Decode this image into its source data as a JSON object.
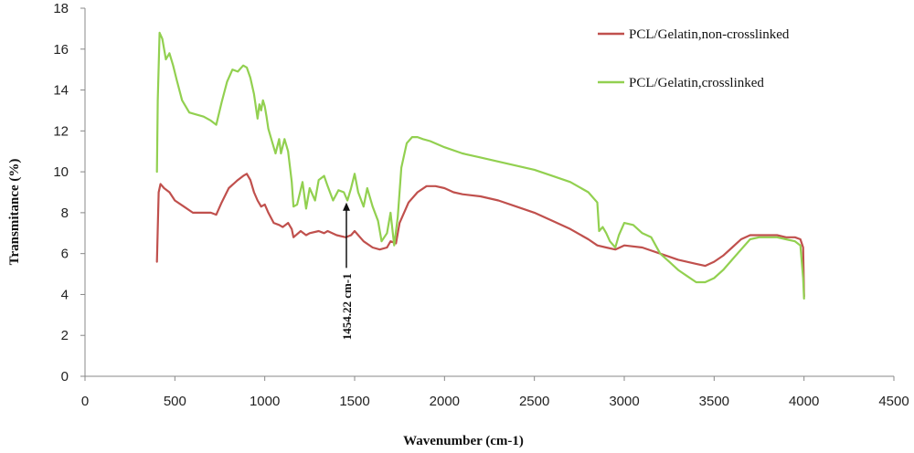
{
  "chart_data": {
    "type": "line",
    "title": "",
    "xlabel": "Wavenumber (cm-1)",
    "ylabel": "Transmitance (%)",
    "xlim": [
      0,
      4500
    ],
    "ylim": [
      0,
      18
    ],
    "xticks": [
      0,
      500,
      1000,
      1500,
      2000,
      2500,
      3000,
      3500,
      4000,
      4500
    ],
    "yticks": [
      0,
      2,
      4,
      6,
      8,
      10,
      12,
      14,
      16,
      18
    ],
    "grid": false,
    "legend_position": "top-right",
    "annotation": {
      "text": "1454.22 cm-1",
      "x": 1454.22,
      "y_arrow_tip": 8.5,
      "y_arrow_tail": 5.3
    },
    "series": [
      {
        "name": "PCL/Gelatin,non-crosslinked",
        "color": "#c0504d",
        "x": [
          400,
          410,
          420,
          440,
          470,
          500,
          550,
          600,
          650,
          700,
          730,
          760,
          800,
          850,
          880,
          900,
          920,
          940,
          960,
          980,
          1000,
          1020,
          1050,
          1080,
          1100,
          1130,
          1150,
          1160,
          1200,
          1230,
          1250,
          1300,
          1330,
          1350,
          1400,
          1450,
          1480,
          1500,
          1550,
          1600,
          1640,
          1680,
          1700,
          1730,
          1750,
          1800,
          1850,
          1900,
          1950,
          2000,
          2050,
          2100,
          2200,
          2300,
          2400,
          2500,
          2600,
          2700,
          2800,
          2850,
          2900,
          2950,
          3000,
          3100,
          3200,
          3300,
          3400,
          3450,
          3500,
          3550,
          3600,
          3650,
          3700,
          3750,
          3800,
          3850,
          3900,
          3950,
          3980,
          3995,
          4000
        ],
        "y": [
          5.6,
          9.0,
          9.4,
          9.2,
          9.0,
          8.6,
          8.3,
          8.0,
          8.0,
          8.0,
          7.9,
          8.5,
          9.2,
          9.6,
          9.8,
          9.9,
          9.6,
          9.0,
          8.6,
          8.3,
          8.4,
          8.0,
          7.5,
          7.4,
          7.3,
          7.5,
          7.2,
          6.8,
          7.1,
          6.9,
          7.0,
          7.1,
          7.0,
          7.1,
          6.9,
          6.8,
          6.9,
          7.1,
          6.6,
          6.3,
          6.2,
          6.3,
          6.6,
          6.5,
          7.5,
          8.5,
          9.0,
          9.3,
          9.3,
          9.2,
          9.0,
          8.9,
          8.8,
          8.6,
          8.3,
          8.0,
          7.6,
          7.2,
          6.7,
          6.4,
          6.3,
          6.2,
          6.4,
          6.3,
          6.0,
          5.7,
          5.5,
          5.4,
          5.6,
          5.9,
          6.3,
          6.7,
          6.9,
          6.9,
          6.9,
          6.9,
          6.8,
          6.8,
          6.7,
          6.3,
          3.9
        ]
      },
      {
        "name": "PCL/Gelatin,crosslinked",
        "color": "#92d050",
        "x": [
          400,
          405,
          415,
          430,
          450,
          470,
          490,
          510,
          540,
          580,
          620,
          660,
          700,
          730,
          760,
          790,
          820,
          850,
          880,
          900,
          920,
          940,
          960,
          970,
          980,
          990,
          1000,
          1010,
          1020,
          1040,
          1060,
          1080,
          1090,
          1110,
          1130,
          1150,
          1160,
          1180,
          1210,
          1230,
          1250,
          1280,
          1300,
          1330,
          1350,
          1380,
          1410,
          1440,
          1460,
          1480,
          1500,
          1520,
          1550,
          1570,
          1600,
          1630,
          1650,
          1680,
          1700,
          1720,
          1740,
          1760,
          1790,
          1820,
          1850,
          1880,
          1920,
          2000,
          2100,
          2200,
          2300,
          2400,
          2500,
          2600,
          2700,
          2800,
          2850,
          2860,
          2880,
          2900,
          2920,
          2950,
          2970,
          3000,
          3050,
          3100,
          3150,
          3200,
          3250,
          3300,
          3350,
          3400,
          3450,
          3500,
          3550,
          3600,
          3650,
          3700,
          3750,
          3800,
          3850,
          3900,
          3950,
          3980,
          3995,
          4000
        ],
        "y": [
          10.0,
          13.5,
          16.8,
          16.5,
          15.5,
          15.8,
          15.2,
          14.5,
          13.5,
          12.9,
          12.8,
          12.7,
          12.5,
          12.3,
          13.4,
          14.4,
          15.0,
          14.9,
          15.2,
          15.1,
          14.6,
          13.8,
          12.6,
          13.3,
          13.0,
          13.5,
          13.2,
          12.7,
          12.1,
          11.5,
          10.9,
          11.6,
          10.9,
          11.6,
          11.0,
          9.5,
          8.3,
          8.4,
          9.5,
          8.2,
          9.2,
          8.6,
          9.6,
          9.8,
          9.3,
          8.6,
          9.1,
          9.0,
          8.6,
          9.2,
          9.9,
          9.0,
          8.3,
          9.2,
          8.3,
          7.6,
          6.6,
          7.0,
          8.0,
          6.4,
          7.8,
          10.2,
          11.4,
          11.7,
          11.7,
          11.6,
          11.5,
          11.2,
          10.9,
          10.7,
          10.5,
          10.3,
          10.1,
          9.8,
          9.5,
          9.0,
          8.5,
          7.1,
          7.3,
          7.0,
          6.6,
          6.3,
          6.9,
          7.5,
          7.4,
          7.0,
          6.8,
          6.0,
          5.6,
          5.2,
          4.9,
          4.6,
          4.6,
          4.8,
          5.2,
          5.7,
          6.2,
          6.7,
          6.8,
          6.8,
          6.8,
          6.7,
          6.6,
          6.4,
          4.8,
          3.8
        ]
      }
    ]
  }
}
